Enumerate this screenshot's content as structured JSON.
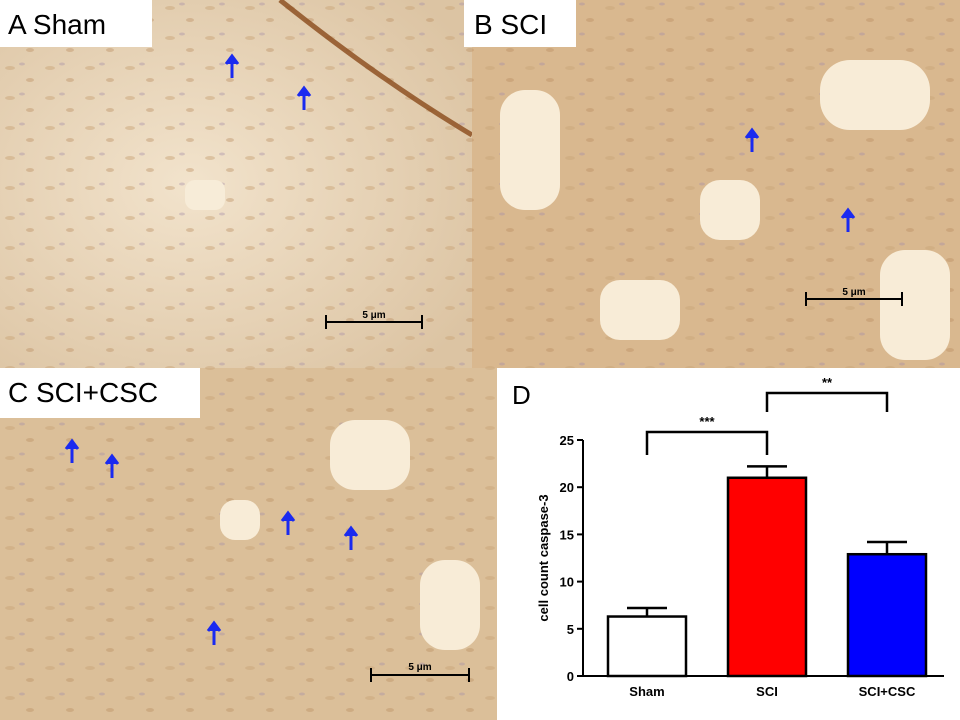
{
  "panels": [
    {
      "label": "A Sham",
      "scale_bar": "5 μm"
    },
    {
      "label": "B SCI",
      "scale_bar": "5 μm"
    },
    {
      "label": "C SCI+CSC",
      "scale_bar": "5 μm"
    }
  ],
  "chart_data": {
    "type": "bar",
    "title": "D",
    "ylabel": "cell count caspase-3",
    "categories": [
      "Sham",
      "SCI",
      "SCI+CSC"
    ],
    "values": [
      6.3,
      21,
      12.9
    ],
    "errors": [
      0.9,
      1.2,
      1.3
    ],
    "colors": [
      "#ffffff",
      "#ff0000",
      "#0000ff"
    ],
    "ylim": [
      0,
      25
    ],
    "yticks": [
      0,
      5,
      10,
      15,
      20,
      25
    ],
    "annotations": [
      "***",
      "**"
    ]
  }
}
